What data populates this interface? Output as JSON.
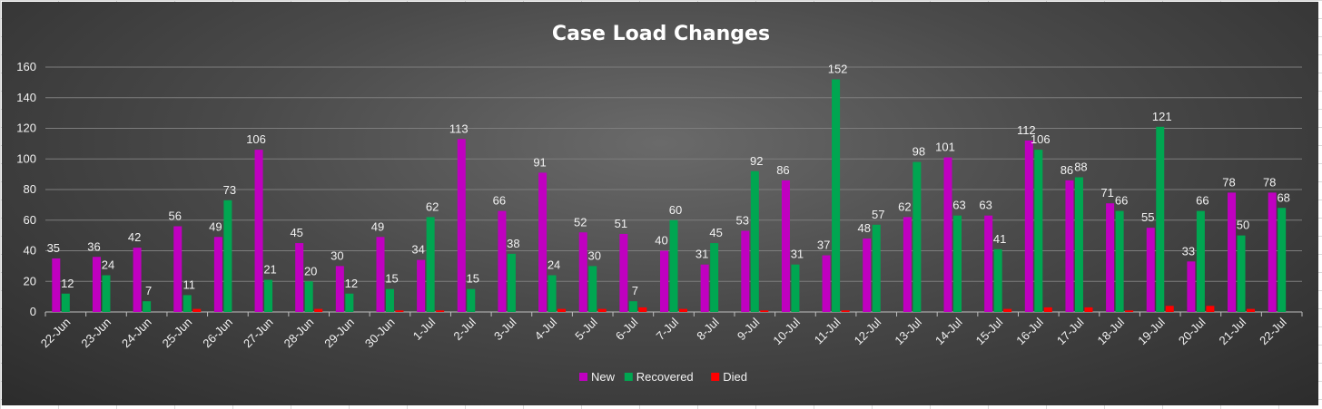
{
  "chart_data": {
    "type": "bar",
    "title": "Case Load Changes",
    "xlabel": "",
    "ylabel": "",
    "ylim": [
      0,
      160
    ],
    "yticks": [
      0,
      20,
      40,
      60,
      80,
      100,
      120,
      140,
      160
    ],
    "grid": true,
    "legend": "bottom-center",
    "categories": [
      "22-Jun",
      "23-Jun",
      "24-Jun",
      "25-Jun",
      "26-Jun",
      "27-Jun",
      "28-Jun",
      "29-Jun",
      "30-Jun",
      "1-Jul",
      "2-Jul",
      "3-Jul",
      "4-Jul",
      "5-Jul",
      "6-Jul",
      "7-Jul",
      "8-Jul",
      "9-Jul",
      "10-Jul",
      "11-Jul",
      "12-Jul",
      "13-Jul",
      "14-Jul",
      "15-Jul",
      "16-Jul",
      "17-Jul",
      "18-Jul",
      "19-Jul",
      "20-Jul",
      "21-Jul",
      "22-Jul"
    ],
    "series": [
      {
        "name": "New",
        "color": "#c000c0",
        "values": [
          35,
          36,
          42,
          56,
          49,
          106,
          45,
          30,
          49,
          34,
          113,
          66,
          91,
          52,
          51,
          40,
          31,
          53,
          86,
          37,
          48,
          62,
          101,
          63,
          112,
          86,
          71,
          55,
          33,
          78,
          78
        ]
      },
      {
        "name": "Recovered",
        "color": "#00a651",
        "values": [
          12,
          24,
          7,
          11,
          73,
          21,
          20,
          12,
          15,
          62,
          15,
          38,
          24,
          30,
          7,
          60,
          45,
          92,
          31,
          152,
          57,
          98,
          63,
          41,
          106,
          88,
          66,
          121,
          66,
          50,
          68
        ]
      },
      {
        "name": "Died",
        "color": "#ff0000",
        "values": [
          0,
          0,
          0,
          2,
          0,
          0,
          2,
          0,
          1,
          1,
          0,
          0,
          2,
          2,
          3,
          2,
          0,
          1,
          0,
          1,
          0,
          0,
          0,
          2,
          3,
          3,
          1,
          4,
          4,
          2,
          0
        ]
      }
    ]
  }
}
